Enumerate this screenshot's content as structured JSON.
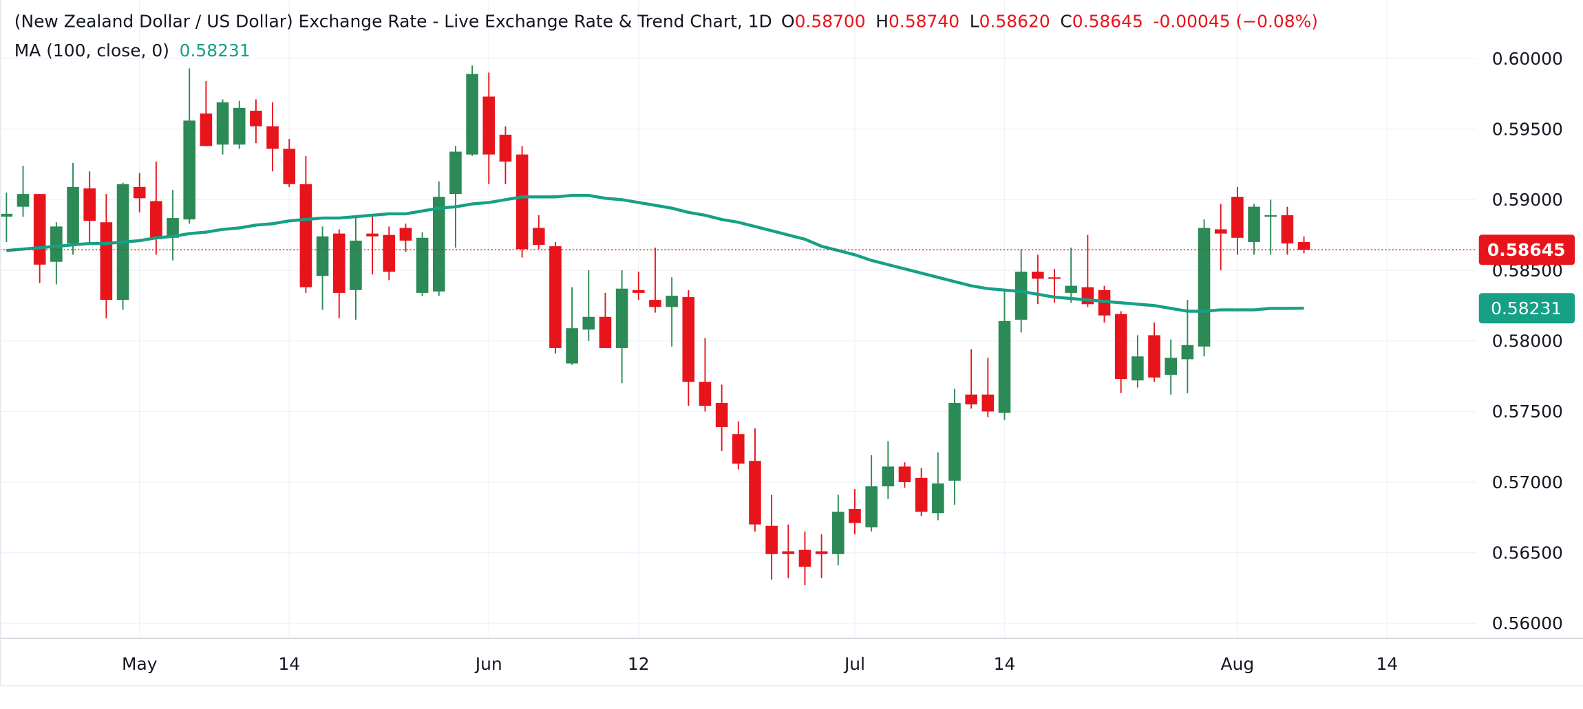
{
  "chart_data": {
    "type": "candlestick",
    "title": "(New Zealand Dollar / US Dollar) Exchange Rate - Live Exchange Rate & Trend Chart, 1D",
    "ohlc_legend": [
      {
        "label": "O",
        "value": "0.58700"
      },
      {
        "label": "H",
        "value": "0.58740"
      },
      {
        "label": "L",
        "value": "0.58620"
      }
    ],
    "close_label": "C",
    "change": "-0.00045 (−0.08%)",
    "ma_name": "MA (100, close, 0)",
    "up_color": "#2b8a55",
    "down_color": "#e8141c",
    "ma_color": "#16a085",
    "text_color": "#131722",
    "categories": [
      null,
      null,
      null,
      null,
      null,
      null,
      null,
      null,
      "May",
      null,
      null,
      null,
      null,
      null,
      null,
      null,
      null,
      "14",
      null,
      null,
      null,
      null,
      null,
      null,
      null,
      null,
      null,
      null,
      null,
      "Jun",
      null,
      null,
      null,
      null,
      null,
      null,
      null,
      null,
      "12",
      null,
      null,
      null,
      null,
      null,
      null,
      null,
      null,
      null,
      null,
      null,
      null,
      "Jul",
      null,
      null,
      null,
      null,
      null,
      null,
      null,
      null,
      "14",
      null,
      null,
      null,
      null,
      null,
      null,
      null,
      null,
      null,
      null,
      null,
      null,
      null,
      "Aug",
      null,
      null,
      null,
      null,
      null,
      null,
      null,
      null,
      "14",
      null,
      null,
      null,
      null,
      null
    ],
    "ohlc": {
      "open": [
        0.5888,
        0.5895,
        0.5904,
        0.5856,
        0.5869,
        0.5908,
        0.5884,
        0.5829,
        0.5909,
        0.5899,
        0.5873,
        0.5886,
        0.5961,
        0.5939,
        0.5939,
        0.5963,
        0.5952,
        0.5936,
        0.5911,
        0.5846,
        0.5876,
        0.5836,
        0.5876,
        0.5875,
        0.588,
        0.5834,
        0.5835,
        0.5904,
        0.5932,
        0.5973,
        0.5946,
        0.5932,
        0.588,
        0.5867,
        0.5784,
        0.5808,
        0.5817,
        0.5795,
        0.5836,
        0.5829,
        0.5824,
        0.5831,
        0.5771,
        0.5756,
        0.5734,
        0.5715,
        0.5669,
        0.5651,
        0.5652,
        0.5651,
        0.5649,
        0.5681,
        0.5668,
        0.5697,
        0.5711,
        0.5703,
        0.5678,
        0.5701,
        0.5762,
        0.5762,
        0.5749,
        0.5815,
        0.5849,
        0.5845,
        0.5834,
        0.5838,
        0.5836,
        0.5819,
        0.5772,
        0.5804,
        0.5776,
        0.5787,
        0.5796,
        0.5879,
        0.5902,
        0.587,
        0.5888,
        0.5889,
        0.587,
        null,
        null,
        null,
        null,
        null,
        null,
        null,
        null,
        null,
        null
      ],
      "high": [
        0.5905,
        0.5924,
        0.5904,
        0.5884,
        0.5926,
        0.592,
        0.5904,
        0.5912,
        0.5919,
        0.5927,
        0.5907,
        0.5993,
        0.5984,
        0.5971,
        0.597,
        0.5971,
        0.5969,
        0.5943,
        0.5931,
        0.5881,
        0.5879,
        0.5888,
        0.5889,
        0.5881,
        0.5883,
        0.5877,
        0.5913,
        0.5938,
        0.5995,
        0.599,
        0.5952,
        0.5938,
        0.5889,
        0.587,
        0.5838,
        0.585,
        0.5834,
        0.585,
        0.5849,
        0.5866,
        0.5845,
        0.5836,
        0.5802,
        0.5769,
        0.5743,
        0.5738,
        0.5691,
        0.567,
        0.5665,
        0.5663,
        0.5691,
        0.5695,
        0.5719,
        0.5729,
        0.5714,
        0.571,
        0.5721,
        0.5766,
        0.5794,
        0.5788,
        0.5836,
        0.5865,
        0.5861,
        0.5851,
        0.5866,
        0.5875,
        0.5839,
        0.5821,
        0.5804,
        0.5813,
        0.5801,
        0.5829,
        0.5886,
        0.5897,
        0.5909,
        0.5897,
        0.59,
        0.5895,
        0.5874,
        null,
        null,
        null,
        null,
        null,
        null,
        null,
        null,
        null,
        null
      ],
      "low": [
        0.587,
        0.5888,
        0.5841,
        0.584,
        0.5861,
        0.587,
        0.5816,
        0.5822,
        0.5891,
        0.5861,
        0.5857,
        0.5883,
        0.5938,
        0.5932,
        0.5936,
        0.594,
        0.592,
        0.5909,
        0.5834,
        0.5822,
        0.5816,
        0.5815,
        0.5847,
        0.5843,
        0.5863,
        0.5832,
        0.5832,
        0.5866,
        0.5931,
        0.5911,
        0.5911,
        0.5859,
        0.5865,
        0.5791,
        0.5783,
        0.58,
        0.5795,
        0.577,
        0.5829,
        0.582,
        0.5796,
        0.5754,
        0.575,
        0.5722,
        0.5709,
        0.5665,
        0.5631,
        0.5632,
        0.5627,
        0.5632,
        0.5641,
        0.5663,
        0.5665,
        0.5688,
        0.5696,
        0.5676,
        0.5673,
        0.5684,
        0.5752,
        0.5746,
        0.5744,
        0.5806,
        0.5826,
        0.5827,
        0.5827,
        0.5824,
        0.5813,
        0.5763,
        0.5767,
        0.5771,
        0.5762,
        0.5763,
        0.5789,
        0.585,
        0.5861,
        0.5861,
        0.5861,
        0.5861,
        0.5862,
        null,
        null,
        null,
        null,
        null,
        null,
        null,
        null,
        null,
        null
      ],
      "close": [
        0.589,
        0.5904,
        0.5854,
        0.5881,
        0.5909,
        0.5885,
        0.5829,
        0.5911,
        0.5901,
        0.5872,
        0.5887,
        0.5956,
        0.5938,
        0.5969,
        0.5965,
        0.5952,
        0.5936,
        0.5911,
        0.5838,
        0.5874,
        0.5834,
        0.5871,
        0.5874,
        0.5849,
        0.5871,
        0.5873,
        0.5902,
        0.5934,
        0.5989,
        0.5932,
        0.5927,
        0.5865,
        0.5868,
        0.5795,
        0.5809,
        0.5817,
        0.5795,
        0.5837,
        0.5834,
        0.5824,
        0.5832,
        0.5771,
        0.5754,
        0.5739,
        0.5713,
        0.567,
        0.5649,
        0.5649,
        0.564,
        0.5649,
        0.5679,
        0.5671,
        0.5697,
        0.5711,
        0.57,
        0.5679,
        0.5699,
        0.5756,
        0.5755,
        0.575,
        0.5814,
        0.5849,
        0.5844,
        0.5844,
        0.5839,
        0.5826,
        0.5818,
        0.5773,
        0.5789,
        0.5774,
        0.5788,
        0.5797,
        0.588,
        0.5876,
        0.5873,
        0.5895,
        0.5889,
        0.5869,
        0.58645,
        null,
        null,
        null,
        null,
        null,
        null,
        null,
        null,
        null,
        null
      ]
    },
    "ma": {
      "values": [
        0.5864,
        0.5865,
        0.5866,
        0.5867,
        0.5868,
        0.5869,
        0.5869,
        0.587,
        0.5871,
        0.5873,
        0.5874,
        0.5876,
        0.5877,
        0.5879,
        0.588,
        0.5882,
        0.5883,
        0.5885,
        0.5886,
        0.5887,
        0.5887,
        0.5888,
        0.5889,
        0.589,
        0.589,
        0.5892,
        0.5894,
        0.5895,
        0.5897,
        0.5898,
        0.59,
        0.5902,
        0.5902,
        0.5902,
        0.5903,
        0.5903,
        0.5901,
        0.59,
        0.5898,
        0.5896,
        0.5894,
        0.5891,
        0.5889,
        0.5886,
        0.5884,
        0.5881,
        0.5878,
        0.5875,
        0.5872,
        0.5867,
        0.5864,
        0.5861,
        0.5857,
        0.5854,
        0.5851,
        0.5848,
        0.5845,
        0.5842,
        0.5839,
        0.5837,
        0.5836,
        0.5835,
        0.5833,
        0.5831,
        0.583,
        0.5829,
        0.5828,
        0.5827,
        0.5826,
        0.5825,
        0.5823,
        0.5821,
        0.5821,
        0.5822,
        0.5822,
        0.5822,
        0.5823,
        0.5823,
        0.58231,
        null,
        null,
        null,
        null,
        null,
        null,
        null,
        null,
        null,
        null
      ]
    },
    "ylim": [
      0.55893,
      0.60414
    ],
    "yticks": [
      {
        "value": 0.56,
        "label": "0.56000"
      },
      {
        "value": 0.565,
        "label": "0.56500"
      },
      {
        "value": 0.57,
        "label": "0.57000"
      },
      {
        "value": 0.575,
        "label": "0.57500"
      },
      {
        "value": 0.58,
        "label": "0.58000"
      },
      {
        "value": 0.585,
        "label": "0.58500"
      },
      {
        "value": 0.59,
        "label": "0.59000"
      },
      {
        "value": 0.595,
        "label": "0.59500"
      },
      {
        "value": 0.6,
        "label": "0.60000"
      }
    ],
    "grid": true
  }
}
